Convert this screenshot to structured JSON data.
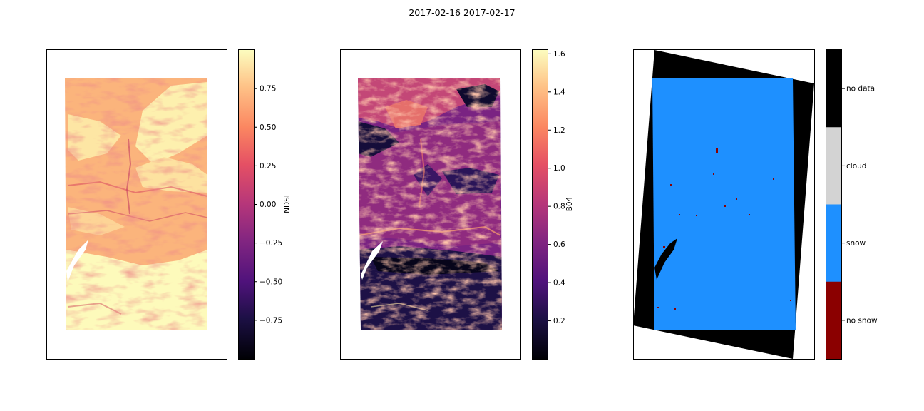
{
  "figure": {
    "title": "2017-02-16 2017-02-17"
  },
  "colors": {
    "frame": "#000000",
    "background": "#ffffff",
    "snow": "#1e90ff",
    "cloud": "#d3d3d3",
    "no_data": "#000000",
    "no_snow": "#8b0000"
  },
  "chart_data": [
    {
      "type": "heatmap",
      "title": "",
      "xlabel": "",
      "ylabel": "",
      "axes_ticks": "none",
      "colormap": "magma",
      "colorbar": {
        "label": "NDSI",
        "range": [
          -1.0,
          1.0
        ],
        "ticks": [
          "0.75",
          "0.50",
          "0.25",
          "0.00",
          "−0.25",
          "−0.50",
          "−0.75"
        ],
        "tick_values": [
          0.75,
          0.5,
          0.25,
          0.0,
          -0.25,
          -0.5,
          -0.75
        ]
      }
    },
    {
      "type": "heatmap",
      "title": "",
      "xlabel": "",
      "ylabel": "",
      "axes_ticks": "none",
      "colormap": "magma",
      "colorbar": {
        "label": "B04",
        "range": [
          0.0,
          1.62
        ],
        "ticks": [
          "1.6",
          "1.4",
          "1.2",
          "1.0",
          "0.8",
          "0.6",
          "0.4",
          "0.2"
        ],
        "tick_values": [
          1.6,
          1.4,
          1.2,
          1.0,
          0.8,
          0.6,
          0.4,
          0.2
        ]
      }
    },
    {
      "type": "heatmap",
      "title": "",
      "xlabel": "",
      "ylabel": "",
      "axes_ticks": "none",
      "colorbar": {
        "label": "",
        "categories": [
          "no data",
          "cloud",
          "snow",
          "no snow"
        ],
        "colors": [
          "#000000",
          "#d3d3d3",
          "#1e90ff",
          "#8b0000"
        ]
      }
    }
  ]
}
